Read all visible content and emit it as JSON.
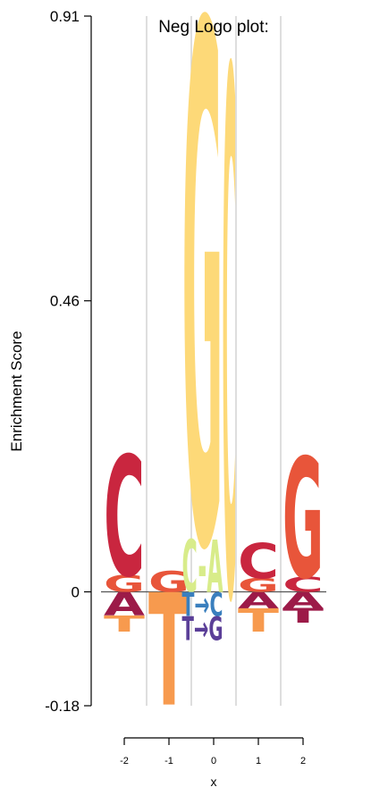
{
  "chart_data": {
    "type": "sequence-logo",
    "title": "Neg Logo plot:",
    "xlabel": "x",
    "ylabel": "Enrichment Score",
    "ylim": [
      -0.18,
      0.91
    ],
    "yticks": [
      {
        "value": 0.91,
        "label": "0.91"
      },
      {
        "value": 0.46,
        "label": "0.46"
      },
      {
        "value": 0,
        "label": "0"
      },
      {
        "value": -0.18,
        "label": "-0.18"
      }
    ],
    "xticks": [
      {
        "value": -2,
        "label": "-2"
      },
      {
        "value": -1,
        "label": "-1"
      },
      {
        "value": 0,
        "label": "0"
      },
      {
        "value": 1,
        "label": "1"
      },
      {
        "value": 2,
        "label": "2"
      }
    ],
    "grid": "vertical dividers between positions",
    "positions": [
      {
        "x": -2,
        "positive": [
          {
            "letter": "G",
            "score": 0.027,
            "color": "#e8553a"
          },
          {
            "letter": "C",
            "score": 0.19,
            "color": "#c9263f"
          }
        ],
        "negative": [
          {
            "letter": "A",
            "score": 0.037,
            "color": "#9c1a48"
          },
          {
            "letter": "T",
            "score": 0.026,
            "color": "#f79a4e"
          }
        ]
      },
      {
        "x": -1,
        "positive": [
          {
            "letter": "G",
            "score": 0.033,
            "color": "#e8553a"
          }
        ],
        "negative": [
          {
            "letter": "T",
            "score": 0.178,
            "color": "#f79a4e"
          }
        ]
      },
      {
        "x": -0.25,
        "positive": [
          {
            "letter": "C-A",
            "score": 0.083,
            "color": "#d8ec8a"
          },
          {
            "letter": "G",
            "score": 0.82,
            "color": "#fdd978"
          }
        ],
        "negative": [
          {
            "letter": "T→C",
            "score": 0.038,
            "color": "#3a7fbe"
          },
          {
            "letter": "T→G",
            "score": 0.038,
            "color": "#5b3f98"
          }
        ]
      },
      {
        "x": 0.35,
        "positive": [
          {
            "letter": "C",
            "score": 0.83,
            "color": "#fdd978"
          }
        ],
        "negative": []
      },
      {
        "x": 1,
        "positive": [
          {
            "letter": "G",
            "score": 0.022,
            "color": "#e8553a"
          },
          {
            "letter": "C",
            "score": 0.056,
            "color": "#c9263f"
          }
        ],
        "negative": [
          {
            "letter": "A",
            "score": 0.026,
            "color": "#9c1a48"
          },
          {
            "letter": "T",
            "score": 0.037,
            "color": "#f79a4e"
          }
        ]
      },
      {
        "x": 2,
        "positive": [
          {
            "letter": "C",
            "score": 0.024,
            "color": "#c9263f"
          },
          {
            "letter": "G",
            "score": 0.19,
            "color": "#e8553a"
          }
        ],
        "negative": [
          {
            "letter": "A",
            "score": 0.026,
            "color": "#9c1a48"
          },
          {
            "letter": "T",
            "score": 0.023,
            "color": "#9c1a48"
          }
        ]
      }
    ]
  }
}
